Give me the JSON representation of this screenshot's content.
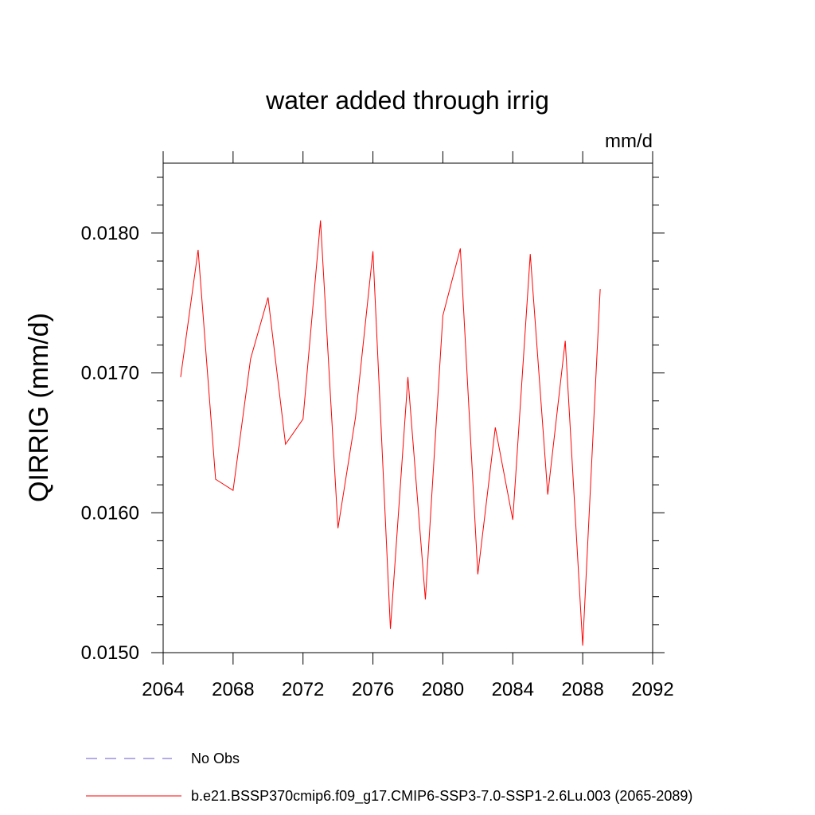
{
  "chart_data": {
    "type": "line",
    "title": "water added through irrig",
    "units_label": "mm/d",
    "ylabel": "QIRRIG  (mm/d)",
    "xlabel": "",
    "xlim": [
      2064,
      2092
    ],
    "ylim": [
      0.015,
      0.0185
    ],
    "x_ticks": [
      2064,
      2068,
      2072,
      2076,
      2080,
      2084,
      2088,
      2092
    ],
    "x_tick_labels": [
      "2064",
      "2068",
      "2072",
      "2076",
      "2080",
      "2084",
      "2088",
      "2092"
    ],
    "y_ticks": [
      0.015,
      0.016,
      0.017,
      0.018
    ],
    "y_tick_labels": [
      "0.0150",
      "0.0160",
      "0.0170",
      "0.0180"
    ],
    "grid": false,
    "legend_placement": "bottom",
    "series": [
      {
        "name": "No Obs",
        "color": "#6a5acd",
        "style": "dashed",
        "x": [],
        "values": []
      },
      {
        "name": "b.e21.BSSP370cmip6.f09_g17.CMIP6-SSP3-7.0-SSP1-2.6Lu.003 (2065-2089)",
        "color": "#ff0000",
        "style": "solid",
        "x": [
          2065,
          2066,
          2067,
          2068,
          2069,
          2070,
          2071,
          2072,
          2073,
          2074,
          2075,
          2076,
          2077,
          2078,
          2079,
          2080,
          2081,
          2082,
          2083,
          2084,
          2085,
          2086,
          2087,
          2088,
          2089
        ],
        "values": [
          0.01697,
          0.01788,
          0.01624,
          0.01616,
          0.0171,
          0.01754,
          0.01649,
          0.01667,
          0.01809,
          0.01589,
          0.01668,
          0.01787,
          0.01517,
          0.01697,
          0.01538,
          0.01741,
          0.01789,
          0.01556,
          0.01661,
          0.01595,
          0.01785,
          0.01613,
          0.01723,
          0.01505,
          0.0176
        ]
      }
    ]
  }
}
